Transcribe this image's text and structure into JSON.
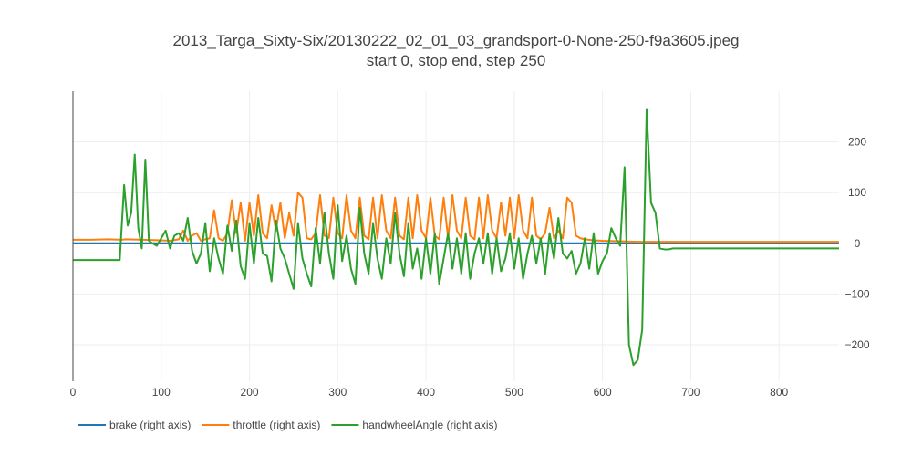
{
  "chart_data": {
    "type": "line",
    "title": "2013_Targa_Sixty-Six/20130222_02_01_03_grandsport-0-None-250-f9a3605.jpeg",
    "subtitle": "start 0, stop end, step 250",
    "xlabel": "",
    "ylabel": "",
    "xlim": [
      0,
      868
    ],
    "ylim": [
      -272,
      300
    ],
    "x_ticks": [
      0,
      100,
      200,
      300,
      400,
      500,
      600,
      700,
      800
    ],
    "y_ticks": [
      200,
      100,
      0,
      -100,
      -200
    ],
    "y_tick_labels": [
      "200",
      "100",
      "0",
      "−100",
      "−200"
    ],
    "y_axis_side": "right",
    "grid": true,
    "legend_position": "bottom-left",
    "series": [
      {
        "name": "brake (right axis)",
        "color": "#1f77b4",
        "x": [
          0,
          868
        ],
        "y": [
          0,
          0
        ]
      },
      {
        "name": "throttle (right axis)",
        "color": "#ff7f0e",
        "x": [
          0,
          20,
          40,
          55,
          60,
          80,
          100,
          110,
          120,
          125,
          130,
          135,
          140,
          145,
          150,
          155,
          160,
          165,
          170,
          175,
          180,
          185,
          190,
          195,
          200,
          205,
          210,
          215,
          220,
          225,
          230,
          235,
          240,
          245,
          250,
          255,
          260,
          265,
          270,
          275,
          280,
          285,
          290,
          295,
          300,
          305,
          310,
          315,
          320,
          325,
          330,
          335,
          340,
          345,
          350,
          355,
          360,
          365,
          370,
          375,
          380,
          385,
          390,
          395,
          400,
          405,
          410,
          415,
          420,
          425,
          430,
          435,
          440,
          445,
          450,
          455,
          460,
          465,
          470,
          475,
          480,
          485,
          490,
          495,
          500,
          505,
          510,
          515,
          520,
          525,
          530,
          535,
          540,
          545,
          550,
          555,
          560,
          565,
          570,
          575,
          580,
          590,
          600,
          620,
          640,
          660,
          680,
          700,
          750,
          800,
          868
        ],
        "y": [
          7,
          7,
          8,
          7,
          8,
          7,
          6,
          5,
          8,
          25,
          5,
          15,
          20,
          5,
          8,
          10,
          65,
          10,
          5,
          20,
          85,
          20,
          80,
          5,
          80,
          15,
          95,
          20,
          10,
          75,
          25,
          80,
          10,
          60,
          15,
          100,
          90,
          10,
          8,
          20,
          95,
          15,
          10,
          90,
          20,
          10,
          95,
          25,
          10,
          90,
          15,
          8,
          90,
          10,
          95,
          25,
          10,
          90,
          15,
          8,
          90,
          10,
          95,
          25,
          10,
          90,
          15,
          8,
          90,
          10,
          95,
          25,
          10,
          90,
          15,
          8,
          90,
          10,
          95,
          25,
          10,
          80,
          15,
          90,
          10,
          95,
          25,
          10,
          90,
          15,
          8,
          20,
          70,
          10,
          25,
          10,
          90,
          80,
          15,
          10,
          8,
          6,
          5,
          4,
          3,
          3,
          3,
          3,
          3,
          3,
          3
        ]
      },
      {
        "name": "handwheelAngle (right axis)",
        "color": "#2ca02c",
        "x": [
          0,
          30,
          50,
          53,
          58,
          62,
          66,
          70,
          74,
          78,
          82,
          86,
          90,
          95,
          100,
          105,
          110,
          115,
          120,
          125,
          130,
          135,
          140,
          145,
          150,
          155,
          160,
          165,
          170,
          175,
          180,
          185,
          190,
          195,
          200,
          205,
          210,
          215,
          220,
          225,
          230,
          235,
          240,
          245,
          250,
          255,
          260,
          265,
          270,
          275,
          280,
          285,
          290,
          295,
          300,
          305,
          310,
          315,
          320,
          325,
          330,
          335,
          340,
          345,
          350,
          355,
          360,
          365,
          370,
          375,
          380,
          385,
          390,
          395,
          400,
          405,
          410,
          415,
          420,
          425,
          430,
          435,
          440,
          445,
          450,
          455,
          460,
          465,
          470,
          475,
          480,
          485,
          490,
          495,
          500,
          505,
          510,
          515,
          520,
          525,
          530,
          535,
          540,
          545,
          550,
          555,
          560,
          565,
          570,
          575,
          580,
          585,
          590,
          595,
          600,
          605,
          610,
          615,
          620,
          625,
          630,
          635,
          640,
          645,
          650,
          655,
          660,
          665,
          670,
          675,
          680,
          685,
          690,
          700,
          750,
          800,
          850,
          868
        ],
        "y": [
          -33,
          -33,
          -33,
          -33,
          115,
          35,
          60,
          175,
          30,
          -10,
          165,
          5,
          0,
          -5,
          10,
          25,
          -10,
          15,
          20,
          5,
          50,
          -15,
          -40,
          -20,
          40,
          -55,
          10,
          -30,
          -60,
          35,
          -15,
          45,
          -45,
          -70,
          40,
          -40,
          50,
          -20,
          -25,
          -75,
          45,
          -10,
          -30,
          -60,
          -90,
          40,
          -30,
          -60,
          -85,
          30,
          -40,
          60,
          -20,
          -70,
          75,
          -35,
          15,
          -50,
          -80,
          70,
          -20,
          -60,
          40,
          -30,
          -70,
          10,
          -40,
          60,
          -20,
          -65,
          40,
          -50,
          -10,
          -70,
          10,
          -60,
          20,
          -80,
          -30,
          20,
          -50,
          10,
          -60,
          20,
          -70,
          -20,
          10,
          -40,
          20,
          -60,
          10,
          -55,
          -30,
          20,
          -50,
          10,
          -70,
          -20,
          15,
          -40,
          10,
          -60,
          20,
          -30,
          50,
          -20,
          -30,
          -15,
          -60,
          -40,
          10,
          -50,
          20,
          -60,
          -35,
          -20,
          30,
          10,
          -5,
          150,
          -200,
          -240,
          -230,
          -170,
          265,
          80,
          60,
          -10,
          -12,
          -12,
          -10,
          -10,
          -10,
          -10,
          -10,
          -10,
          -10,
          -10
        ]
      }
    ]
  }
}
